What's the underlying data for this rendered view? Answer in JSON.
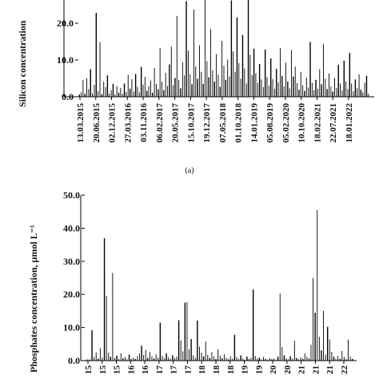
{
  "chart_data": [
    {
      "type": "bar",
      "panel_label": "(a)",
      "ylabel": "Silicon concentration",
      "ylim": [
        0,
        25
      ],
      "yticks": [
        "0.0",
        "10.0",
        "20.0"
      ],
      "ytick_values": [
        0,
        10,
        20
      ],
      "x_tick_labels": [
        "13.03.2015",
        "20.06.2015",
        "02.12.2015",
        "27.03.2016",
        "03.11.2016",
        "06.02.2017",
        "20.05.2017",
        "15.10.2017",
        "19.12.2017",
        "07.05.2018",
        "01.10.2018",
        "14.01.2019",
        "05.08.2019",
        "05.02.2020",
        "10.10.2020",
        "18.02.2021",
        "22.07.2021",
        "18.01.2022"
      ],
      "grid": false,
      "legend": "none",
      "color": "#000000",
      "series": [
        {
          "values": [
            0.6,
            1.2,
            4.5,
            0.8,
            5,
            2.1,
            7.5,
            0.9,
            3.2,
            22.8,
            1.5,
            14.8,
            0.7,
            4.1,
            2.6,
            5.8,
            0.9,
            1.8,
            3.5,
            0.6,
            2.9,
            1.1,
            2.4,
            0.8,
            3.6,
            1.3,
            5.9,
            2.2,
            4.8,
            1.4,
            6.2,
            2.7,
            1.2,
            8.1,
            3.3,
            5.4,
            1.6,
            2.9,
            4.4,
            1.1,
            7.8,
            3.5,
            2,
            13.2,
            4.1,
            1.8,
            6.5,
            2.9,
            8.8,
            13.6,
            3.2,
            5.1,
            22,
            4.6,
            2.3,
            9.4,
            5.8,
            26,
            12.5,
            6.1,
            3.4,
            23.7,
            8.2,
            4.9,
            14,
            6.8,
            3.5,
            26.5,
            9.7,
            5.3,
            18.4,
            7.2,
            4.1,
            11.6,
            6,
            2.7,
            15.2,
            8.4,
            4.6,
            10.1,
            5.5,
            26.2,
            12.3,
            6.8,
            21.6,
            9.1,
            4.9,
            16.8,
            7.7,
            3.6,
            27.5,
            11.4,
            5.9,
            13.1,
            6.4,
            3.8,
            8.9,
            4.7,
            2.6,
            12.8,
            5.3,
            3,
            10.4,
            4.8,
            2.2,
            7.6,
            3.9,
            13.2,
            5.6,
            2.8,
            9.3,
            4.1,
            2.3,
            12.7,
            5.5,
            8.2,
            3.7,
            1.9,
            6.8,
            3.1,
            1.6,
            5.2,
            2.5,
            14.9,
            3.8,
            1.8,
            4.6,
            2.2,
            7.5,
            3.4,
            14.3,
            4.9,
            2.1,
            6.3,
            2.8,
            1.4,
            5.1,
            2.4,
            8.7,
            3.6,
            1.7,
            9.8,
            4.2,
            2.1,
            11.9,
            3.6,
            1.5,
            4.7,
            2.3,
            6.1,
            1.9,
            1.2,
            3.8,
            5.7,
            0.8
          ]
        }
      ]
    },
    {
      "type": "bar",
      "ylabel": "Phosphates concentration, μmol L⁻¹",
      "ylim": [
        0,
        50
      ],
      "yticks": [
        "0.0",
        "10.0",
        "20.0",
        "30.0",
        "40.0",
        "50.0"
      ],
      "ytick_values": [
        0,
        10,
        20,
        30,
        40,
        50
      ],
      "x_tick_labels": [
        "15",
        "15",
        "15",
        "16",
        "16",
        "17",
        "17",
        "17",
        "18",
        "18",
        "18",
        "19",
        "19",
        "20",
        "20",
        "21",
        "21",
        "21",
        "22"
      ],
      "grid": false,
      "legend": "none",
      "color": "#000000",
      "series": [
        {
          "values": [
            0.2,
            0.4,
            0.3,
            9.2,
            1.1,
            2.5,
            0.6,
            3.8,
            0.9,
            37,
            19.5,
            2.4,
            1.2,
            26.5,
            0.8,
            1.5,
            0.5,
            2.2,
            0.7,
            1.1,
            0.4,
            1.8,
            0.6,
            0.9,
            0.5,
            1.4,
            2.1,
            4.5,
            1.7,
            3.2,
            0.8,
            2.6,
            1.3,
            0.6,
            1.9,
            0.9,
            11.5,
            1.4,
            0.7,
            2.2,
            1,
            0.5,
            1.6,
            0.8,
            1.2,
            12.2,
            6.1,
            2.8,
            17.5,
            17.7,
            3.4,
            6.5,
            1.6,
            0.9,
            12.1,
            4.2,
            2.4,
            1.3,
            5.8,
            1.7,
            0.8,
            2.6,
            1.2,
            0.5,
            3.4,
            1.5,
            0.7,
            1.9,
            0.9,
            0.4,
            1.3,
            0.6,
            7.8,
            1.1,
            0.5,
            1.6,
            0.7,
            0.3,
            1.2,
            0.5,
            0.9,
            21.5,
            1.4,
            0.6,
            0.9,
            0.4,
            1.1,
            0.5,
            0.3,
            0.8,
            0.4,
            0.6,
            0.3,
            1.2,
            20.3,
            4.1,
            1.6,
            0.7,
            0.4,
            1.3,
            0.6,
            6,
            0.8,
            0.4,
            1,
            0.5,
            2.2,
            1.2,
            0.6,
            4.8,
            25,
            14.5,
            45.5,
            7.2,
            3.1,
            15,
            1.8,
            10.2,
            6.4,
            2.6,
            1.2,
            0.6,
            1.4,
            0.5,
            2.9,
            1.1,
            0.4,
            6.3,
            1.2,
            0.5
          ]
        }
      ]
    }
  ]
}
